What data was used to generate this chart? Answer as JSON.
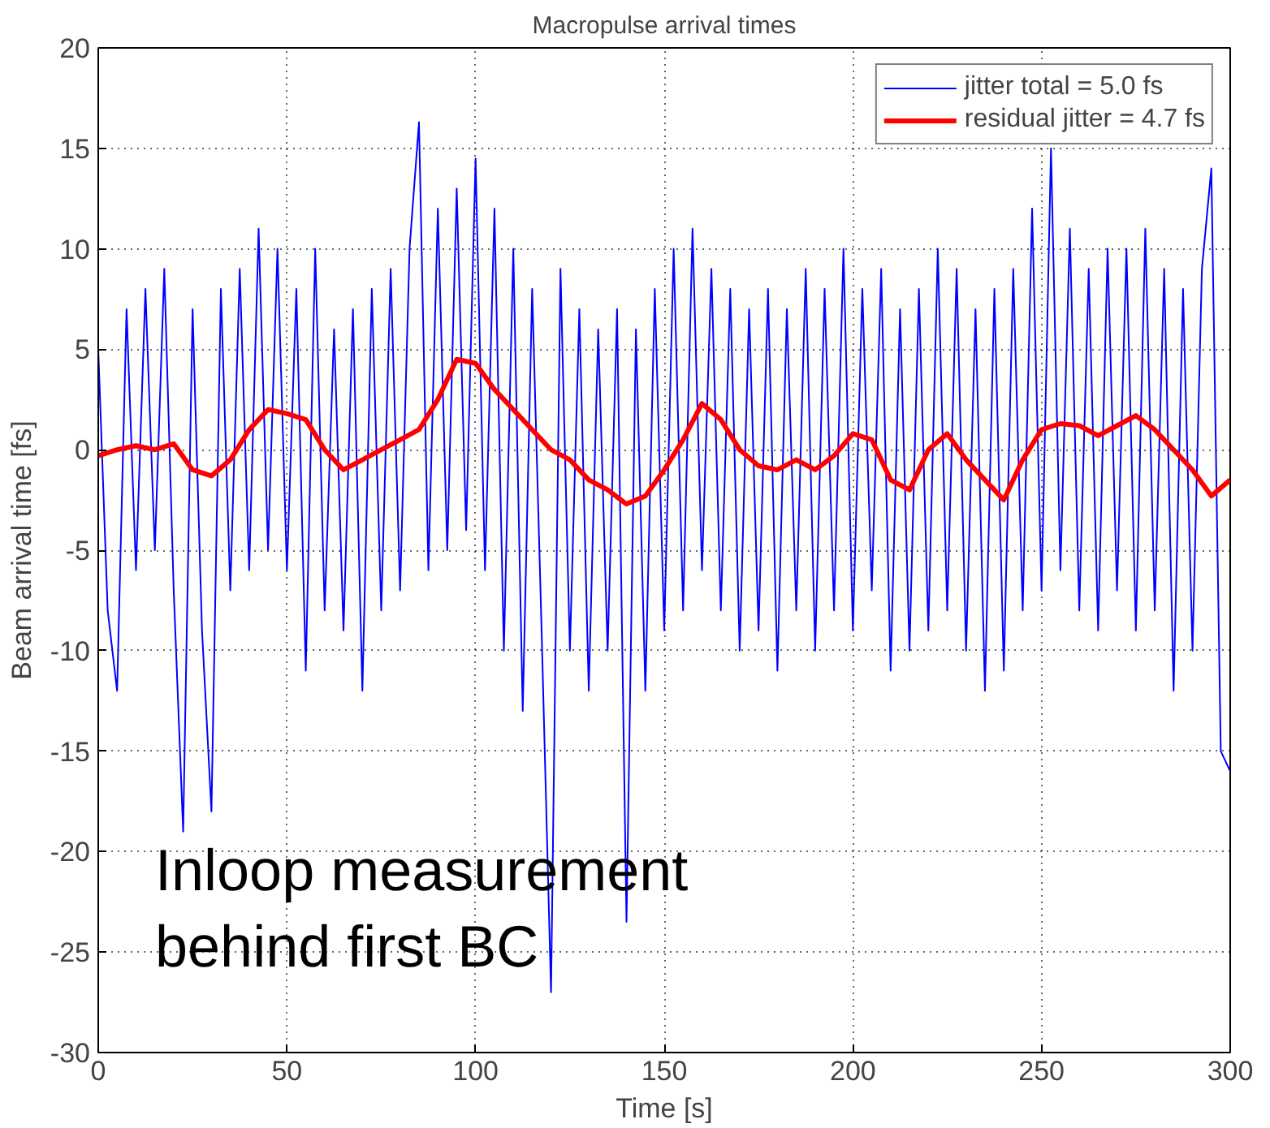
{
  "chart_data": {
    "type": "line",
    "title": "Macropulse arrival times",
    "xlabel": "Time [s]",
    "ylabel": "Beam arrival time [fs]",
    "xlim": [
      0,
      300
    ],
    "xticks": [
      0,
      50,
      100,
      150,
      200,
      250,
      300
    ],
    "ylim": [
      -30,
      20
    ],
    "yticks": [
      -30,
      -25,
      -20,
      -15,
      -10,
      -5,
      0,
      5,
      10,
      15,
      20
    ],
    "grid": true,
    "legend": "top right",
    "annotations": [
      "Inloop measurement\nbehind first BC"
    ],
    "series": [
      {
        "name": "jitter total = 5.0 fs",
        "color": "#0000ff",
        "x": [
          0,
          2.5,
          5,
          7.5,
          10,
          12.5,
          15,
          17.5,
          20,
          22.5,
          25,
          27.5,
          30,
          32.5,
          35,
          37.5,
          40,
          42.5,
          45,
          47.5,
          50,
          52.5,
          55,
          57.5,
          60,
          62.5,
          65,
          67.5,
          70,
          72.5,
          75,
          77.5,
          80,
          82.5,
          85,
          87.5,
          90,
          92.5,
          95,
          97.5,
          100,
          102.5,
          105,
          107.5,
          110,
          112.5,
          115,
          117.5,
          120,
          122.5,
          125,
          127.5,
          130,
          132.5,
          135,
          137.5,
          140,
          142.5,
          145,
          147.5,
          150,
          152.5,
          155,
          157.5,
          160,
          162.5,
          165,
          167.5,
          170,
          172.5,
          175,
          177.5,
          180,
          182.5,
          185,
          187.5,
          190,
          192.5,
          195,
          197.5,
          200,
          202.5,
          205,
          207.5,
          210,
          212.5,
          215,
          217.5,
          220,
          222.5,
          225,
          227.5,
          230,
          232.5,
          235,
          237.5,
          240,
          242.5,
          245,
          247.5,
          250,
          252.5,
          255,
          257.5,
          260,
          262.5,
          265,
          267.5,
          270,
          272.5,
          275,
          277.5,
          280,
          282.5,
          285,
          287.5,
          290,
          292.5,
          295,
          297.5,
          300
        ],
        "values": [
          5,
          -8,
          -12,
          7,
          -6,
          8,
          -5,
          9,
          -7,
          -19,
          7,
          -9,
          -18,
          8,
          -7,
          9,
          -6,
          11,
          -5,
          10,
          -6,
          8,
          -11,
          10,
          -8,
          6,
          -9,
          7,
          -12,
          8,
          -8,
          9,
          -7,
          10,
          16.3,
          -6,
          12,
          -5,
          13,
          -4,
          14.5,
          -6,
          12,
          -10,
          10,
          -13,
          8,
          -9,
          -27,
          9,
          -10,
          7,
          -12,
          6,
          -10,
          7,
          -23.5,
          6,
          -12,
          8,
          -9,
          10,
          -8,
          11,
          -6,
          9,
          -8,
          8,
          -10,
          7,
          -9,
          8,
          -11,
          7,
          -8,
          9,
          -10,
          8,
          -8,
          10,
          -9,
          8,
          -7,
          9,
          -11,
          7,
          -10,
          8,
          -9,
          10,
          -8,
          9,
          -10,
          7,
          -12,
          8,
          -11,
          9,
          -8,
          12,
          -7,
          15,
          -6,
          11,
          -8,
          9,
          -9,
          10,
          -7,
          10,
          -9,
          11,
          -8,
          9,
          -12,
          8,
          -10,
          9,
          14,
          -15,
          -16
        ]
      },
      {
        "name": "residual jitter = 4.7 fs",
        "color": "#ff0000",
        "x": [
          0,
          5,
          10,
          15,
          20,
          25,
          30,
          35,
          40,
          45,
          50,
          55,
          60,
          65,
          70,
          75,
          80,
          85,
          90,
          95,
          100,
          105,
          110,
          115,
          120,
          125,
          130,
          135,
          140,
          145,
          150,
          155,
          160,
          165,
          170,
          175,
          180,
          185,
          190,
          195,
          200,
          205,
          210,
          215,
          220,
          225,
          230,
          235,
          240,
          245,
          250,
          255,
          260,
          265,
          270,
          275,
          280,
          285,
          290,
          295,
          300
        ],
        "values": [
          -0.3,
          0,
          0.2,
          0,
          0.3,
          -1,
          -1.3,
          -0.5,
          1,
          2,
          1.8,
          1.5,
          0,
          -1,
          -0.5,
          0,
          0.5,
          1,
          2.5,
          4.5,
          4.3,
          3,
          2,
          1,
          0,
          -0.5,
          -1.5,
          -2,
          -2.7,
          -2.3,
          -1,
          0.5,
          2.3,
          1.5,
          0,
          -0.8,
          -1,
          -0.5,
          -1,
          -0.3,
          0.8,
          0.5,
          -1.5,
          -2,
          0,
          0.8,
          -0.5,
          -1.5,
          -2.5,
          -0.5,
          1,
          1.3,
          1.2,
          0.7,
          1.2,
          1.7,
          1,
          0,
          -1,
          -2.3,
          -1.5
        ]
      }
    ]
  }
}
